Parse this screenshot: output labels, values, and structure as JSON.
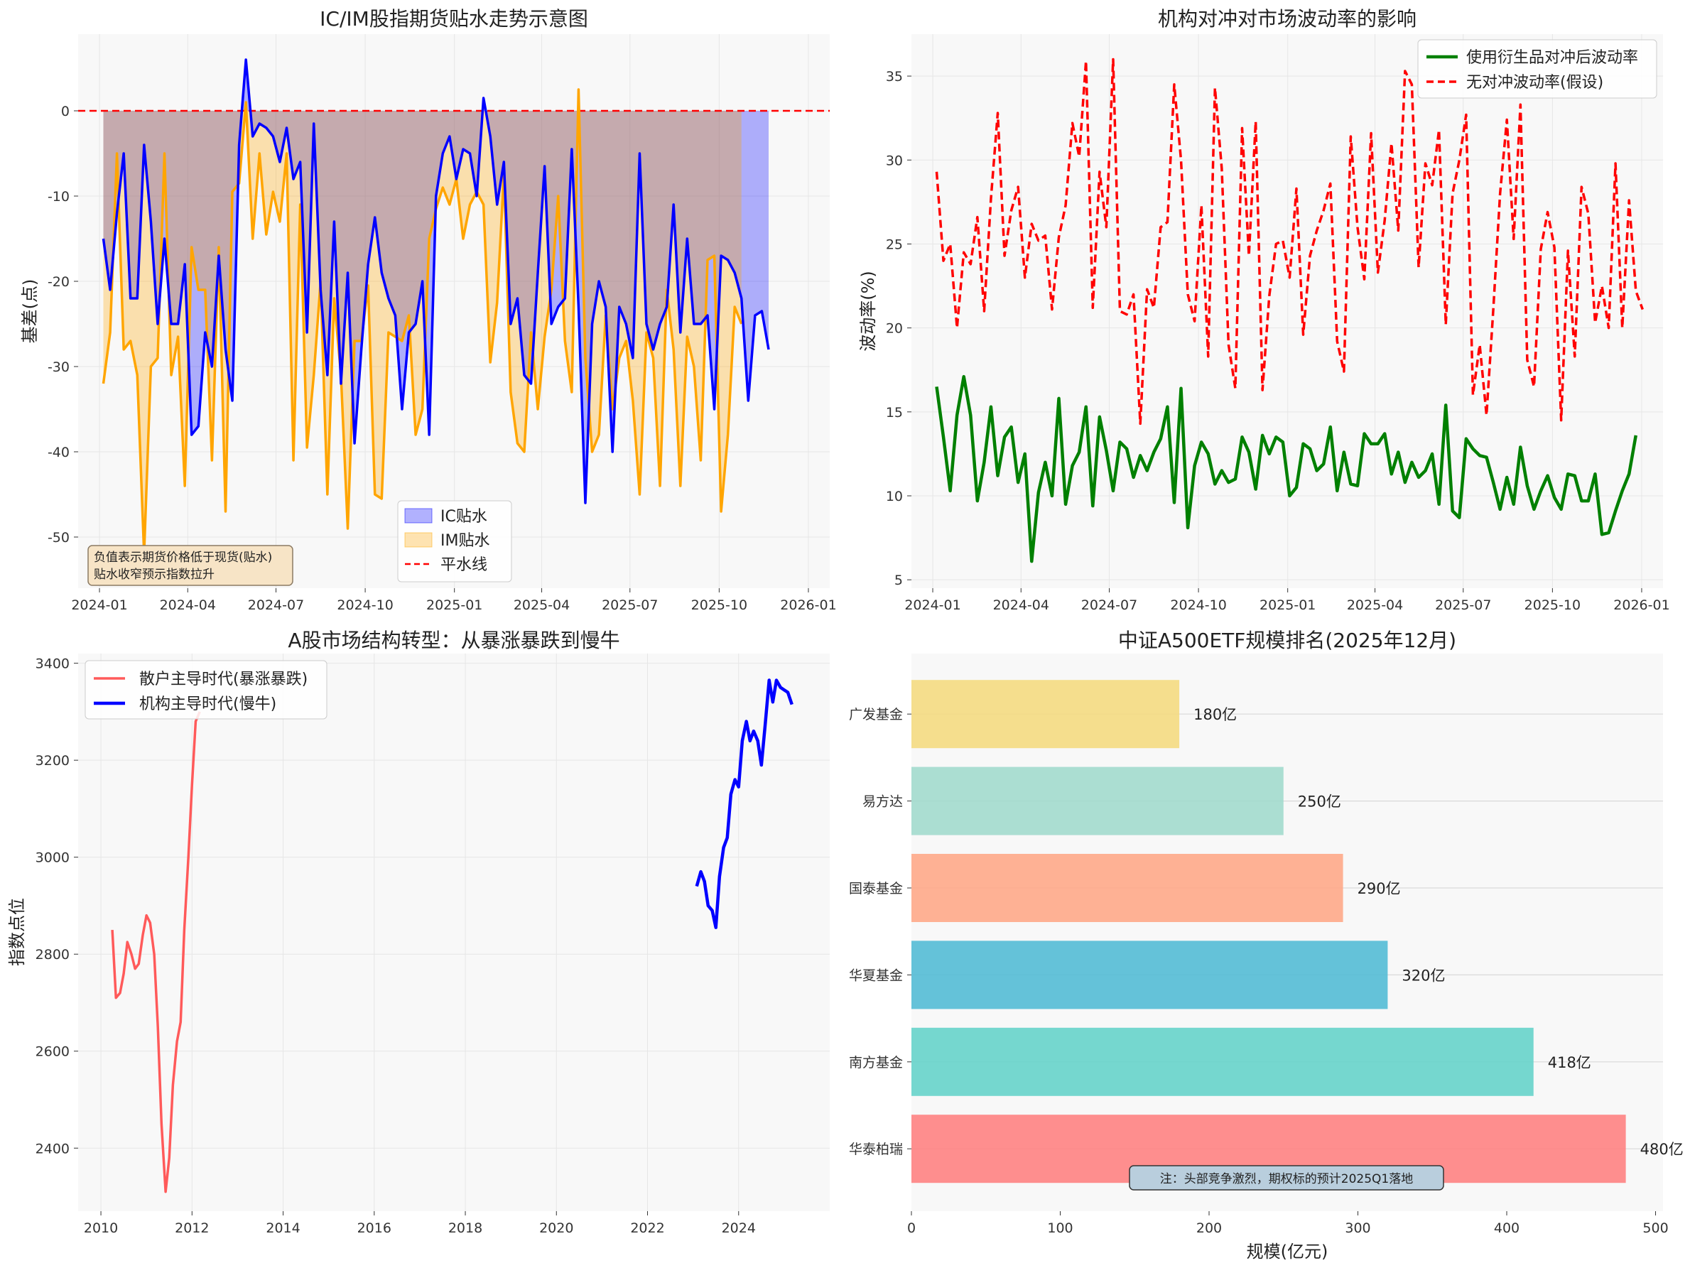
{
  "chart_data": [
    {
      "id": "ic_im_basis",
      "type": "line",
      "title": "IC/IM股指期货贴水走势示意图",
      "xlabel": "",
      "ylabel": "基差(点)",
      "x_ticks": [
        "2024-01",
        "2024-04",
        "2024-07",
        "2024-10",
        "2025-01",
        "2025-04",
        "2025-07",
        "2025-10",
        "2026-01"
      ],
      "y_ticks": [
        0,
        -10,
        -20,
        -30,
        -40,
        -50
      ],
      "ylim": [
        -56,
        9
      ],
      "x_start": "2024-01-05",
      "step_days": 7,
      "series": [
        {
          "name": "IC贴水",
          "color": "#0000ff",
          "values": [
            -15,
            -21,
            -12,
            -5,
            -22,
            -22,
            -4,
            -13,
            -25,
            -15,
            -25,
            -25,
            -18,
            -38,
            -37,
            -26,
            -30,
            -17,
            -28,
            -34,
            -4,
            6,
            -3,
            -1.5,
            -2,
            -3,
            -6,
            -2,
            -8,
            -6,
            -26,
            -1.5,
            -21,
            -31,
            -13,
            -32,
            -19,
            -39,
            -28,
            -18,
            -12.5,
            -19,
            -22,
            -24,
            -35,
            -26,
            -25,
            -20,
            -38,
            -10,
            -5,
            -3,
            -8,
            -4.5,
            -5,
            -10,
            1.5,
            -3,
            -11,
            -6,
            -25,
            -22,
            -31,
            -32,
            -19,
            -6.5,
            -25,
            -23,
            -22,
            -4.5,
            -23,
            -46,
            -25,
            -20,
            -23,
            -40,
            -23,
            -25,
            -29,
            -5,
            -25,
            -28,
            -25,
            -23,
            -11,
            -26,
            -15,
            -25,
            -25,
            -24,
            -35,
            -17,
            -17.5,
            -19,
            -22,
            -34,
            -24,
            -23.5,
            -28
          ],
          "fill": "rgba(0,0,255,0.3)"
        },
        {
          "name": "IM贴水",
          "color": "#ffa500",
          "values": [
            -32,
            -26,
            -5,
            -28,
            -27,
            -31,
            -52,
            -30,
            -29,
            -5,
            -31,
            -26.5,
            -44,
            -16,
            -21,
            -21,
            -41,
            -16,
            -47,
            -9.5,
            -8.5,
            1,
            -15,
            -5,
            -14.5,
            -9.5,
            -13,
            -5,
            -41,
            -11,
            -39.5,
            -31,
            -20,
            -45,
            -22,
            -31,
            -49,
            -27,
            -27,
            -20.5,
            -45,
            -45.5,
            -26,
            -26.5,
            -27,
            -24,
            -38,
            -35,
            -15,
            -11.5,
            -9,
            -11,
            -8,
            -15,
            -11,
            -9.5,
            -11,
            -29.5,
            -22.5,
            -7.5,
            -33,
            -39,
            -40,
            -26,
            -35,
            -26.5,
            -21,
            -10,
            -27,
            -33,
            2.5,
            -29,
            -40,
            -38,
            -24,
            -35,
            -29,
            -27,
            -34,
            -45,
            -26,
            -29,
            -44,
            -21,
            -28,
            -44,
            -26.5,
            -30,
            -41,
            -17.5,
            -17,
            -47,
            -38,
            -23,
            -25
          ]
        },
        {
          "name": "平水线",
          "color": "#ff0000",
          "value": 0
        }
      ],
      "legend": "lower-center",
      "annotation": "负值表示期货价格低于现货(贴水)\n贴水收窄预示指数拉升",
      "grid": true
    },
    {
      "id": "volatility",
      "type": "line",
      "title": "机构对冲对市场波动率的影响",
      "xlabel": "",
      "ylabel": "波动率(%)",
      "x_ticks": [
        "2024-01",
        "2024-04",
        "2024-07",
        "2024-10",
        "2025-01",
        "2025-04",
        "2025-07",
        "2025-10",
        "2026-01"
      ],
      "y_ticks": [
        5,
        10,
        15,
        20,
        25,
        30,
        35
      ],
      "ylim": [
        4.5,
        37.5
      ],
      "x_start": "2024-01-05",
      "step_days": 7,
      "series": [
        {
          "name": "使用衍生品对冲后波动率",
          "color": "#008000",
          "values": [
            16.5,
            13.5,
            10.3,
            14.8,
            17.1,
            14.8,
            9.7,
            12.0,
            15.3,
            11.2,
            13.5,
            14.1,
            10.8,
            12.5,
            6.1,
            10.2,
            12.0,
            10.0,
            15.8,
            9.5,
            11.8,
            12.6,
            15.3,
            9.4,
            14.7,
            12.7,
            10.3,
            13.2,
            12.8,
            11.1,
            12.4,
            11.5,
            12.6,
            13.4,
            15.3,
            9.6,
            16.4,
            8.1,
            11.8,
            13.2,
            12.5,
            10.7,
            11.5,
            10.8,
            11.0,
            13.5,
            12.6,
            10.4,
            13.6,
            12.5,
            13.5,
            13.2,
            10.0,
            10.5,
            13.1,
            12.8,
            11.5,
            11.9,
            14.1,
            10.3,
            12.6,
            10.7,
            10.6,
            13.7,
            13.1,
            13.1,
            13.7,
            11.3,
            12.6,
            10.8,
            12.0,
            11.1,
            11.5,
            12.5,
            9.5,
            15.4,
            9.1,
            8.7,
            13.4,
            12.8,
            12.4,
            12.3,
            10.8,
            9.2,
            11.1,
            9.5,
            12.9,
            10.6,
            9.2,
            10.3,
            11.2,
            9.9,
            9.2,
            11.3,
            11.2,
            9.7,
            9.7,
            11.3,
            7.7,
            7.8,
            9.1,
            10.3,
            11.3,
            13.6
          ]
        },
        {
          "name": "无对冲波动率(假设)",
          "color": "#ff0000",
          "values": [
            29.3,
            24.0,
            25.0,
            20.0,
            24.5,
            23.8,
            26.6,
            21.0,
            27.7,
            32.8,
            24.3,
            27.0,
            28.4,
            23.0,
            26.2,
            25.2,
            25.5,
            21.1,
            25.4,
            27.3,
            32.2,
            30.2,
            35.9,
            21.2,
            29.3,
            26.0,
            36.0,
            21.0,
            20.8,
            22.0,
            14.3,
            22.3,
            21.2,
            26.0,
            26.3,
            34.5,
            30.0,
            22.0,
            20.4,
            27.3,
            18.3,
            34.3,
            29.5,
            19.0,
            16.4,
            31.9,
            24.3,
            32.3,
            16.3,
            21.9,
            25.0,
            25.2,
            23.0,
            28.3,
            19.6,
            24.3,
            25.8,
            27.0,
            28.6,
            19.2,
            17.4,
            31.4,
            26.0,
            22.9,
            31.6,
            23.3,
            26.4,
            31.0,
            25.8,
            35.3,
            34.5,
            23.6,
            29.8,
            28.5,
            31.8,
            20.2,
            28.0,
            30.0,
            32.7,
            16.0,
            19.0,
            14.8,
            21.1,
            28.0,
            32.4,
            25.3,
            33.3,
            18.1,
            16.5,
            24.7,
            26.9,
            24.8,
            14.5,
            24.6,
            18.3,
            28.4,
            26.8,
            20.3,
            22.5,
            20.0,
            29.8,
            20.0,
            27.6,
            22.2,
            21.1
          ]
        }
      ],
      "legend": "upper-right",
      "grid": true
    },
    {
      "id": "a_share_structure",
      "type": "line",
      "title": "A股市场结构转型：从暴涨暴跌到慢牛",
      "xlabel": "",
      "ylabel": "指数点位",
      "x_ticks": [
        2010,
        2012,
        2014,
        2016,
        2018,
        2020,
        2022,
        2024
      ],
      "y_ticks": [
        2400,
        2600,
        2800,
        3000,
        3200,
        3400
      ],
      "xlim": [
        2009.5,
        2026.0
      ],
      "ylim": [
        2270,
        3420
      ],
      "series": [
        {
          "name": "散户主导时代(暴涨暴跌)",
          "color": "#ff5a5a",
          "x": [
            2010.25,
            2010.33,
            2010.42,
            2010.5,
            2010.58,
            2010.67,
            2010.75,
            2010.83,
            2010.92,
            2011.0,
            2011.08,
            2011.17,
            2011.25,
            2011.33,
            2011.42,
            2011.5,
            2011.58,
            2011.67,
            2011.75,
            2011.83,
            2011.92,
            2012.0,
            2012.08,
            2012.17
          ],
          "values": [
            2850,
            2710,
            2720,
            2760,
            2825,
            2800,
            2770,
            2780,
            2840,
            2880,
            2865,
            2800,
            2650,
            2450,
            2310,
            2380,
            2530,
            2620,
            2660,
            2850,
            3000,
            3150,
            3280,
            3300
          ]
        },
        {
          "name": "机构主导时代(慢牛)",
          "color": "#0000ff",
          "x": [
            2023.08,
            2023.17,
            2023.25,
            2023.33,
            2023.42,
            2023.5,
            2023.58,
            2023.67,
            2023.75,
            2023.83,
            2023.92,
            2024.0,
            2024.08,
            2024.17,
            2024.25,
            2024.33,
            2024.42,
            2024.5,
            2024.58,
            2024.67,
            2024.75,
            2024.83,
            2024.92,
            2025.0,
            2025.08,
            2025.17
          ],
          "values": [
            2940,
            2970,
            2950,
            2900,
            2890,
            2855,
            2960,
            3020,
            3040,
            3130,
            3160,
            3145,
            3240,
            3280,
            3240,
            3260,
            3240,
            3190,
            3270,
            3365,
            3320,
            3365,
            3350,
            3345,
            3340,
            3315
          ]
        }
      ],
      "legend": "upper-left",
      "grid": true
    },
    {
      "id": "etf_ranking",
      "type": "bar",
      "orientation": "horizontal",
      "title": "中证A500ETF规模排名(2025年12月)",
      "xlabel": "规模(亿元)",
      "ylabel": "",
      "x_ticks": [
        0,
        100,
        200,
        300,
        400,
        500
      ],
      "xlim": [
        0,
        505
      ],
      "categories": [
        "华泰柏瑞",
        "南方基金",
        "华夏基金",
        "国泰基金",
        "易方达",
        "广发基金"
      ],
      "values": [
        480,
        418,
        320,
        290,
        250,
        180
      ],
      "value_labels": [
        "480亿",
        "418亿",
        "320亿",
        "290亿",
        "250亿",
        "180亿"
      ],
      "colors": [
        "#ff7b7b",
        "#5ed1c8",
        "#4ab8d4",
        "#ffa582",
        "#9ed9cb",
        "#f5d97a"
      ],
      "annotation": "注：头部竞争激烈，期权标的预计2025Q1落地",
      "grid": true
    }
  ]
}
